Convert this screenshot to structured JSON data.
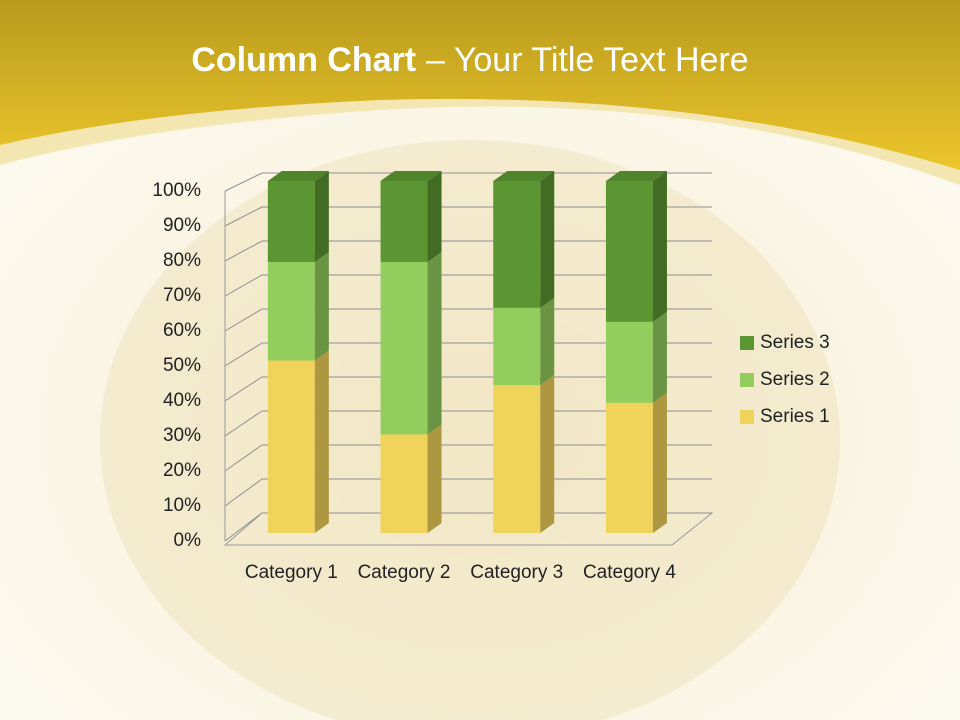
{
  "chart_data": {
    "type": "stacked_column_3d",
    "title": {
      "bold": "Column Chart",
      "text": "– Your Title Text Here"
    },
    "categories": [
      "Category 1",
      "Category 2",
      "Category 3",
      "Category 4"
    ],
    "series": [
      {
        "name": "Series 1",
        "color": "#f0d35a",
        "values": [
          49,
          28,
          42,
          37
        ]
      },
      {
        "name": "Series 2",
        "color": "#93cd5e",
        "values": [
          28,
          49,
          22,
          23
        ]
      },
      {
        "name": "Series 3",
        "color": "#5b9632",
        "values": [
          23,
          23,
          36,
          40
        ]
      }
    ],
    "ylim": [
      0,
      100
    ],
    "yticks": [
      {
        "value": 0,
        "label": "0%"
      },
      {
        "value": 10,
        "label": "10%"
      },
      {
        "value": 20,
        "label": "20%"
      },
      {
        "value": 30,
        "label": "30%"
      },
      {
        "value": 40,
        "label": "40%"
      },
      {
        "value": 50,
        "label": "50%"
      },
      {
        "value": 60,
        "label": "60%"
      },
      {
        "value": 70,
        "label": "70%"
      },
      {
        "value": 80,
        "label": "80%"
      },
      {
        "value": 90,
        "label": "90%"
      },
      {
        "value": 100,
        "label": "100%"
      }
    ],
    "grid": true,
    "legend": "right"
  }
}
